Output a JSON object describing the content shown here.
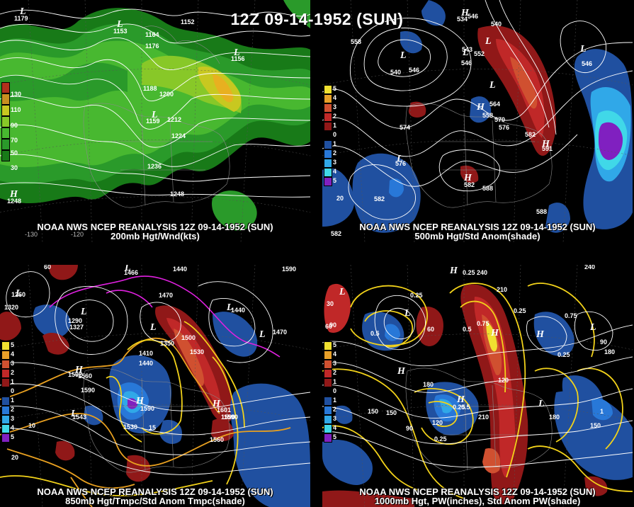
{
  "title": "12Z 09-14-1952 (SUN)",
  "panels": [
    {
      "id": "p1",
      "caption_line1": "NOAA NWS NCEP REANALYSIS 12Z 09-14-1952 (SUN)",
      "caption_line2": "200mb Hgt/Wnd(kts)",
      "colorbar": {
        "labels": [
          "130",
          "110",
          "90",
          "70",
          "50",
          "30"
        ],
        "colors": [
          "#b0301c",
          "#c89020",
          "#c8c820",
          "#88c828",
          "#48b830",
          "#2a9a2a",
          "#187a18"
        ]
      },
      "contour_labels": [
        "1152",
        "1164",
        "1176",
        "1188",
        "1200",
        "1212",
        "1224",
        "1236",
        "1248",
        "1156",
        "1159",
        "1153",
        "1179",
        "1248"
      ],
      "axis_labels": [
        "-130",
        "-120"
      ],
      "highs_lows": [
        "L",
        "L",
        "L",
        "L",
        "H"
      ]
    },
    {
      "id": "p2",
      "caption_line1": "NOAA NWS NCEP REANALYSIS 12Z 09-14-1952 (SUN)",
      "caption_line2": "500mb Hgt/Std Anom(shade)",
      "colorbar": {
        "labels": [
          "5",
          "4",
          "3",
          "2",
          "1",
          "0",
          "1",
          "2",
          "3",
          "4",
          "5"
        ],
        "colors": [
          "#f0e030",
          "#e8a028",
          "#d05030",
          "#c02828",
          "#901818",
          "#000000",
          "#2050a0",
          "#2878d8",
          "#30a8e8",
          "#40d8e8",
          "#8020c0"
        ]
      },
      "contour_labels": [
        "558",
        "540",
        "546",
        "552",
        "546",
        "564",
        "558",
        "570",
        "576",
        "582",
        "588",
        "588",
        "582",
        "546",
        "543",
        "540",
        "534",
        "546",
        "574",
        "576",
        "591",
        "582",
        "20",
        "582"
      ],
      "highs_lows": [
        "H",
        "L",
        "L",
        "L",
        "H",
        "L",
        "H",
        "H",
        "L",
        "L"
      ]
    },
    {
      "id": "p3",
      "caption_line1": "NOAA NWS NCEP REANALYSIS 12Z 09-14-1952 (SUN)",
      "caption_line2": "850mb Hgt/Tmpc/Std Anom Tmpc(shade)",
      "colorbar": {
        "labels": [
          "5",
          "4",
          "3",
          "2",
          "1",
          "0",
          "1",
          "2",
          "3",
          "4",
          "5"
        ],
        "colors": [
          "#f0e030",
          "#e8a028",
          "#d05030",
          "#c02828",
          "#901818",
          "#000000",
          "#2050a0",
          "#2878d8",
          "#30a8e8",
          "#40d8e8",
          "#8020c0"
        ]
      },
      "contour_labels": [
        "1440",
        "1470",
        "1590",
        "1320",
        "1290",
        "1260",
        "1350",
        "1500",
        "1410",
        "1440",
        "1530",
        "1470",
        "1440",
        "1590",
        "1590",
        "1590",
        "1530",
        "1560",
        "1590",
        "1560",
        "10",
        "15",
        "20",
        "60",
        "1466",
        "1327",
        "1592",
        "1543",
        "1601"
      ],
      "highs_lows": [
        "L",
        "L",
        "L",
        "L",
        "H",
        "H",
        "H",
        "L",
        "L",
        "L"
      ]
    },
    {
      "id": "p4",
      "caption_line1": "NOAA NWS NCEP REANALYSIS 12Z 09-14-1952 (SUN)",
      "caption_line2": "1000mb Hgt, PW(inches), Std Anom PW(shade)",
      "colorbar": {
        "labels": [
          "5",
          "4",
          "3",
          "2",
          "1",
          "0",
          "1",
          "2",
          "3",
          "4",
          "5"
        ],
        "colors": [
          "#f0e030",
          "#e8a028",
          "#d05030",
          "#c02828",
          "#901818",
          "#000000",
          "#2050a0",
          "#2878d8",
          "#30a8e8",
          "#40d8e8",
          "#8020c0"
        ]
      },
      "contour_labels": [
        "0.25",
        "0.25",
        "0.25",
        "0.5",
        "0.5",
        "0.75",
        "0.75",
        "0.25",
        "0.25",
        "0.5",
        "0.25",
        "60",
        "90",
        "120",
        "150",
        "180",
        "210",
        "240",
        "90",
        "120",
        "150",
        "180",
        "210",
        "240",
        "150",
        "180",
        "90",
        "30",
        "60",
        "1"
      ],
      "highs_lows": [
        "L",
        "H",
        "H",
        "L",
        "H",
        "H",
        "L",
        "L",
        "H"
      ]
    }
  ]
}
